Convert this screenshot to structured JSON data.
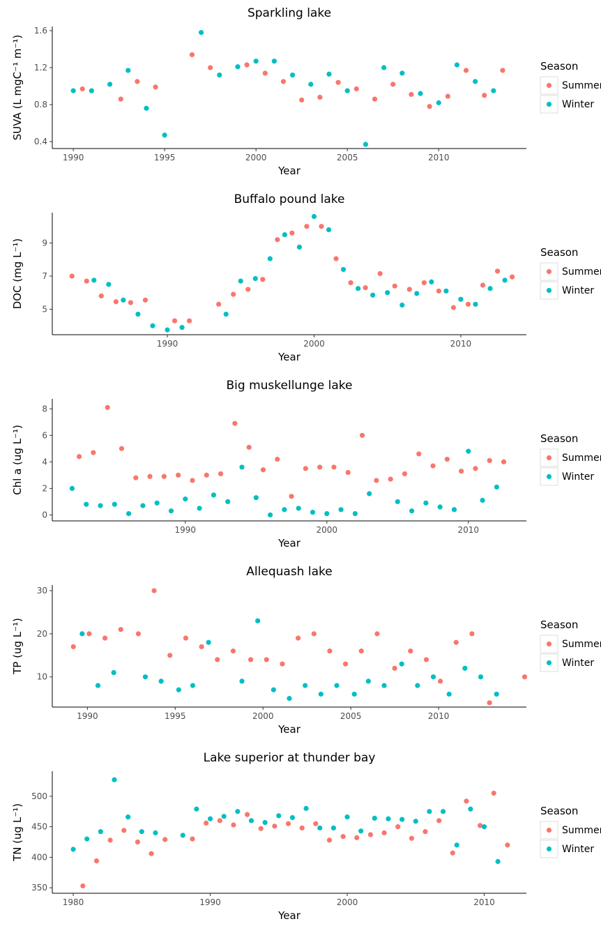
{
  "chart_data": [
    {
      "type": "scatter",
      "title": "Sparkling lake",
      "x_label": "Year",
      "y_label": "SUVA (L mgC⁻¹ m⁻¹)",
      "legend_title": "Season",
      "xlim": [
        1988.85,
        2014.8
      ],
      "ylim": [
        0.325,
        1.645
      ],
      "xticks": [
        1990,
        1995,
        2000,
        2005,
        2010
      ],
      "yticks": [
        0.4,
        0.8,
        1.2,
        1.6
      ],
      "series": [
        {
          "name": "Summer",
          "color": "#F8766D",
          "x": [
            1990.5,
            1992.6,
            1993.5,
            1994.5,
            1996.5,
            1997.5,
            1999.5,
            2000.5,
            2001.5,
            2002.5,
            2003.5,
            2004.5,
            2005.5,
            2006.5,
            2007.5,
            2008.5,
            2009.5,
            2010.5,
            2011.5,
            2012.5,
            2013.5
          ],
          "values": [
            0.97,
            0.86,
            1.05,
            0.99,
            1.34,
            1.2,
            1.23,
            1.14,
            1.05,
            0.85,
            0.88,
            1.04,
            0.97,
            0.86,
            1.02,
            0.91,
            0.78,
            0.89,
            1.17,
            0.9,
            1.17
          ]
        },
        {
          "name": "Winter",
          "color": "#00BFC4",
          "x": [
            1990,
            1991,
            1992,
            1993,
            1994,
            1995,
            1997,
            1998,
            1999,
            2000,
            2001,
            2002,
            2003,
            2004,
            2005,
            2006,
            2007,
            2008,
            2009,
            2010,
            2011,
            2012,
            2013
          ],
          "values": [
            0.95,
            0.95,
            1.02,
            1.17,
            0.76,
            0.47,
            1.58,
            1.12,
            1.21,
            1.27,
            1.27,
            1.12,
            1.02,
            1.13,
            0.95,
            0.37,
            1.2,
            1.14,
            0.92,
            0.82,
            1.23,
            1.05,
            0.95
          ]
        }
      ]
    },
    {
      "type": "scatter",
      "title": "Buffalo pound lake",
      "x_label": "Year",
      "y_label": "DOC (mg L⁻¹)",
      "legend_title": "Season",
      "xlim": [
        1982.16,
        2014.47
      ],
      "ylim": [
        3.46,
        10.83
      ],
      "xticks": [
        1990,
        2000,
        2010
      ],
      "yticks": [
        5,
        7,
        9
      ],
      "series": [
        {
          "name": "Summer",
          "color": "#F8766D",
          "x": [
            1983.5,
            1984.5,
            1985.5,
            1986.5,
            1987.5,
            1988.5,
            1990.5,
            1991.5,
            1993.5,
            1994.5,
            1995.5,
            1996.5,
            1997.5,
            1998.5,
            1999.5,
            2000.5,
            2001.5,
            2002.5,
            2003.5,
            2004.5,
            2005.5,
            2006.5,
            2007.5,
            2008.5,
            2009.5,
            2010.5,
            2011.5,
            2012.5,
            2013.5
          ],
          "values": [
            7.0,
            6.7,
            5.8,
            5.45,
            5.4,
            5.55,
            4.3,
            4.3,
            5.3,
            5.9,
            6.2,
            6.8,
            9.2,
            9.6,
            10.0,
            10.0,
            8.05,
            6.6,
            6.3,
            7.15,
            6.4,
            6.2,
            6.6,
            6.1,
            5.1,
            5.3,
            6.45,
            7.3,
            6.95
          ]
        },
        {
          "name": "Winter",
          "color": "#00BFC4",
          "x": [
            1985,
            1986,
            1987,
            1988,
            1989,
            1990,
            1991,
            1994,
            1995,
            1996,
            1997,
            1998,
            1999,
            2000,
            2001,
            2002,
            2003,
            2004,
            2005,
            2006,
            2007,
            2008,
            2009,
            2010,
            2011,
            2012,
            2013
          ],
          "values": [
            6.75,
            6.5,
            5.55,
            4.7,
            4.0,
            3.75,
            3.9,
            4.7,
            6.7,
            6.85,
            8.05,
            9.5,
            8.75,
            10.6,
            9.8,
            7.4,
            6.25,
            5.85,
            6.0,
            5.25,
            5.95,
            6.65,
            6.1,
            5.6,
            5.3,
            6.25,
            6.75
          ]
        }
      ]
    },
    {
      "type": "scatter",
      "title": "Big muskellunge lake",
      "x_label": "Year",
      "y_label": "Chl a (ug L⁻¹)",
      "legend_title": "Season",
      "xlim": [
        1980.6,
        2014.1
      ],
      "ylim": [
        -0.45,
        8.75
      ],
      "xticks": [
        1990,
        2000,
        2010
      ],
      "yticks": [
        0,
        2,
        4,
        6,
        8
      ],
      "series": [
        {
          "name": "Summer",
          "color": "#F8766D",
          "x": [
            1982.5,
            1983.5,
            1984.5,
            1985.5,
            1986.5,
            1987.5,
            1988.5,
            1989.5,
            1990.5,
            1991.5,
            1992.5,
            1993.5,
            1994.5,
            1995.5,
            1996.5,
            1997.5,
            1998.5,
            1999.5,
            2000.5,
            2001.5,
            2002.5,
            2003.5,
            2004.5,
            2005.5,
            2006.5,
            2007.5,
            2008.5,
            2009.5,
            2010.5,
            2011.5,
            2012.5
          ],
          "values": [
            4.4,
            4.7,
            8.1,
            5.0,
            2.8,
            2.9,
            2.9,
            3.0,
            2.6,
            3.0,
            3.1,
            6.9,
            5.1,
            3.4,
            4.2,
            1.4,
            3.5,
            3.6,
            3.6,
            3.2,
            6.0,
            2.6,
            2.7,
            3.1,
            4.6,
            3.7,
            4.2,
            3.3,
            3.5,
            4.1,
            4.0
          ]
        },
        {
          "name": "Winter",
          "color": "#00BFC4",
          "x": [
            1982,
            1983,
            1984,
            1985,
            1986,
            1987,
            1988,
            1989,
            1990,
            1991,
            1992,
            1993,
            1994,
            1995,
            1996,
            1997,
            1998,
            1999,
            2000,
            2001,
            2002,
            2003,
            2005,
            2006,
            2007,
            2008,
            2009,
            2010,
            2011,
            2012
          ],
          "values": [
            2.0,
            0.8,
            0.7,
            0.8,
            0.1,
            0.7,
            0.9,
            0.3,
            1.2,
            0.5,
            1.5,
            1.0,
            3.6,
            1.3,
            0.0,
            0.4,
            0.5,
            0.2,
            0.1,
            0.4,
            0.1,
            1.6,
            1.0,
            0.3,
            0.9,
            0.6,
            0.4,
            4.8,
            1.1,
            2.1
          ]
        }
      ]
    },
    {
      "type": "scatter",
      "title": "Allequash lake",
      "x_label": "Year",
      "y_label": "TP (ug L⁻¹)",
      "legend_title": "Season",
      "xlim": [
        1988.0,
        2015.0
      ],
      "ylim": [
        3.0,
        31.3
      ],
      "xticks": [
        1990,
        1995,
        2000,
        2005,
        2010
      ],
      "yticks": [
        10,
        20,
        30
      ],
      "series": [
        {
          "name": "Summer",
          "color": "#F8766D",
          "x": [
            1989.2,
            1990.1,
            1991.0,
            1991.9,
            1992.9,
            1993.8,
            1994.7,
            1995.6,
            1996.5,
            1997.4,
            1998.3,
            1999.3,
            2000.2,
            2001.1,
            2002.0,
            2002.9,
            2003.8,
            2004.7,
            2005.6,
            2006.5,
            2007.5,
            2008.4,
            2009.3,
            2010.1,
            2011.0,
            2011.9,
            2012.9,
            2014.9
          ],
          "values": [
            17,
            20,
            19,
            21,
            20,
            30,
            15,
            19,
            17,
            14,
            16,
            14,
            14,
            13,
            19,
            20,
            16,
            13,
            16,
            20,
            12,
            16,
            14,
            9,
            18,
            20,
            4,
            10
          ]
        },
        {
          "name": "Winter",
          "color": "#00BFC4",
          "x": [
            1989.7,
            1990.6,
            1991.5,
            1993.3,
            1994.2,
            1995.2,
            1996.0,
            1996.9,
            1998.8,
            1999.7,
            2000.6,
            2001.5,
            2002.4,
            2003.3,
            2004.2,
            2005.2,
            2006.0,
            2006.9,
            2007.9,
            2008.8,
            2009.7,
            2010.6,
            2011.5,
            2012.4,
            2013.3
          ],
          "values": [
            20,
            8,
            11,
            10,
            9,
            7,
            8,
            18,
            9,
            23,
            7,
            5,
            8,
            6,
            8,
            6,
            9,
            8,
            13,
            8,
            10,
            6,
            12,
            10,
            6
          ]
        }
      ]
    },
    {
      "type": "scatter",
      "title": "Lake superior at thunder bay",
      "x_label": "Year",
      "y_label": "TN (ug L⁻¹)",
      "legend_title": "Season",
      "xlim": [
        1978.47,
        2013.08
      ],
      "ylim": [
        341,
        541
      ],
      "xticks": [
        1980,
        1990,
        2000,
        2010
      ],
      "yticks": [
        350,
        400,
        450,
        500
      ],
      "series": [
        {
          "name": "Summer",
          "color": "#F8766D",
          "x": [
            1980.7,
            1981.7,
            1982.7,
            1983.7,
            1984.7,
            1985.7,
            1986.7,
            1988.7,
            1989.7,
            1990.7,
            1991.7,
            1992.7,
            1993.7,
            1994.7,
            1995.7,
            1996.7,
            1997.7,
            1998.7,
            1999.7,
            2000.7,
            2001.7,
            2002.7,
            2003.7,
            2004.7,
            2005.7,
            2006.7,
            2007.7,
            2008.7,
            2009.7,
            2010.7,
            2011.7
          ],
          "values": [
            353,
            394,
            428,
            444,
            425,
            406,
            429,
            430,
            456,
            460,
            453,
            470,
            447,
            451,
            455,
            448,
            455,
            428,
            434,
            432,
            437,
            440,
            450,
            431,
            442,
            460,
            407,
            492,
            452,
            505,
            420
          ]
        },
        {
          "name": "Winter",
          "color": "#00BFC4",
          "x": [
            1980,
            1981,
            1982,
            1983,
            1984,
            1985,
            1986,
            1988,
            1989,
            1990,
            1991,
            1992,
            1993,
            1994,
            1995,
            1996,
            1997,
            1998,
            1999,
            2000,
            2001,
            2002,
            2003,
            2004,
            2005,
            2006,
            2007,
            2008,
            2009,
            2010,
            2011
          ],
          "values": [
            413,
            430,
            442,
            527,
            466,
            442,
            440,
            436,
            479,
            463,
            467,
            475,
            460,
            457,
            468,
            465,
            480,
            448,
            448,
            466,
            443,
            464,
            463,
            462,
            459,
            475,
            475,
            420,
            479,
            450,
            393
          ]
        }
      ]
    }
  ]
}
